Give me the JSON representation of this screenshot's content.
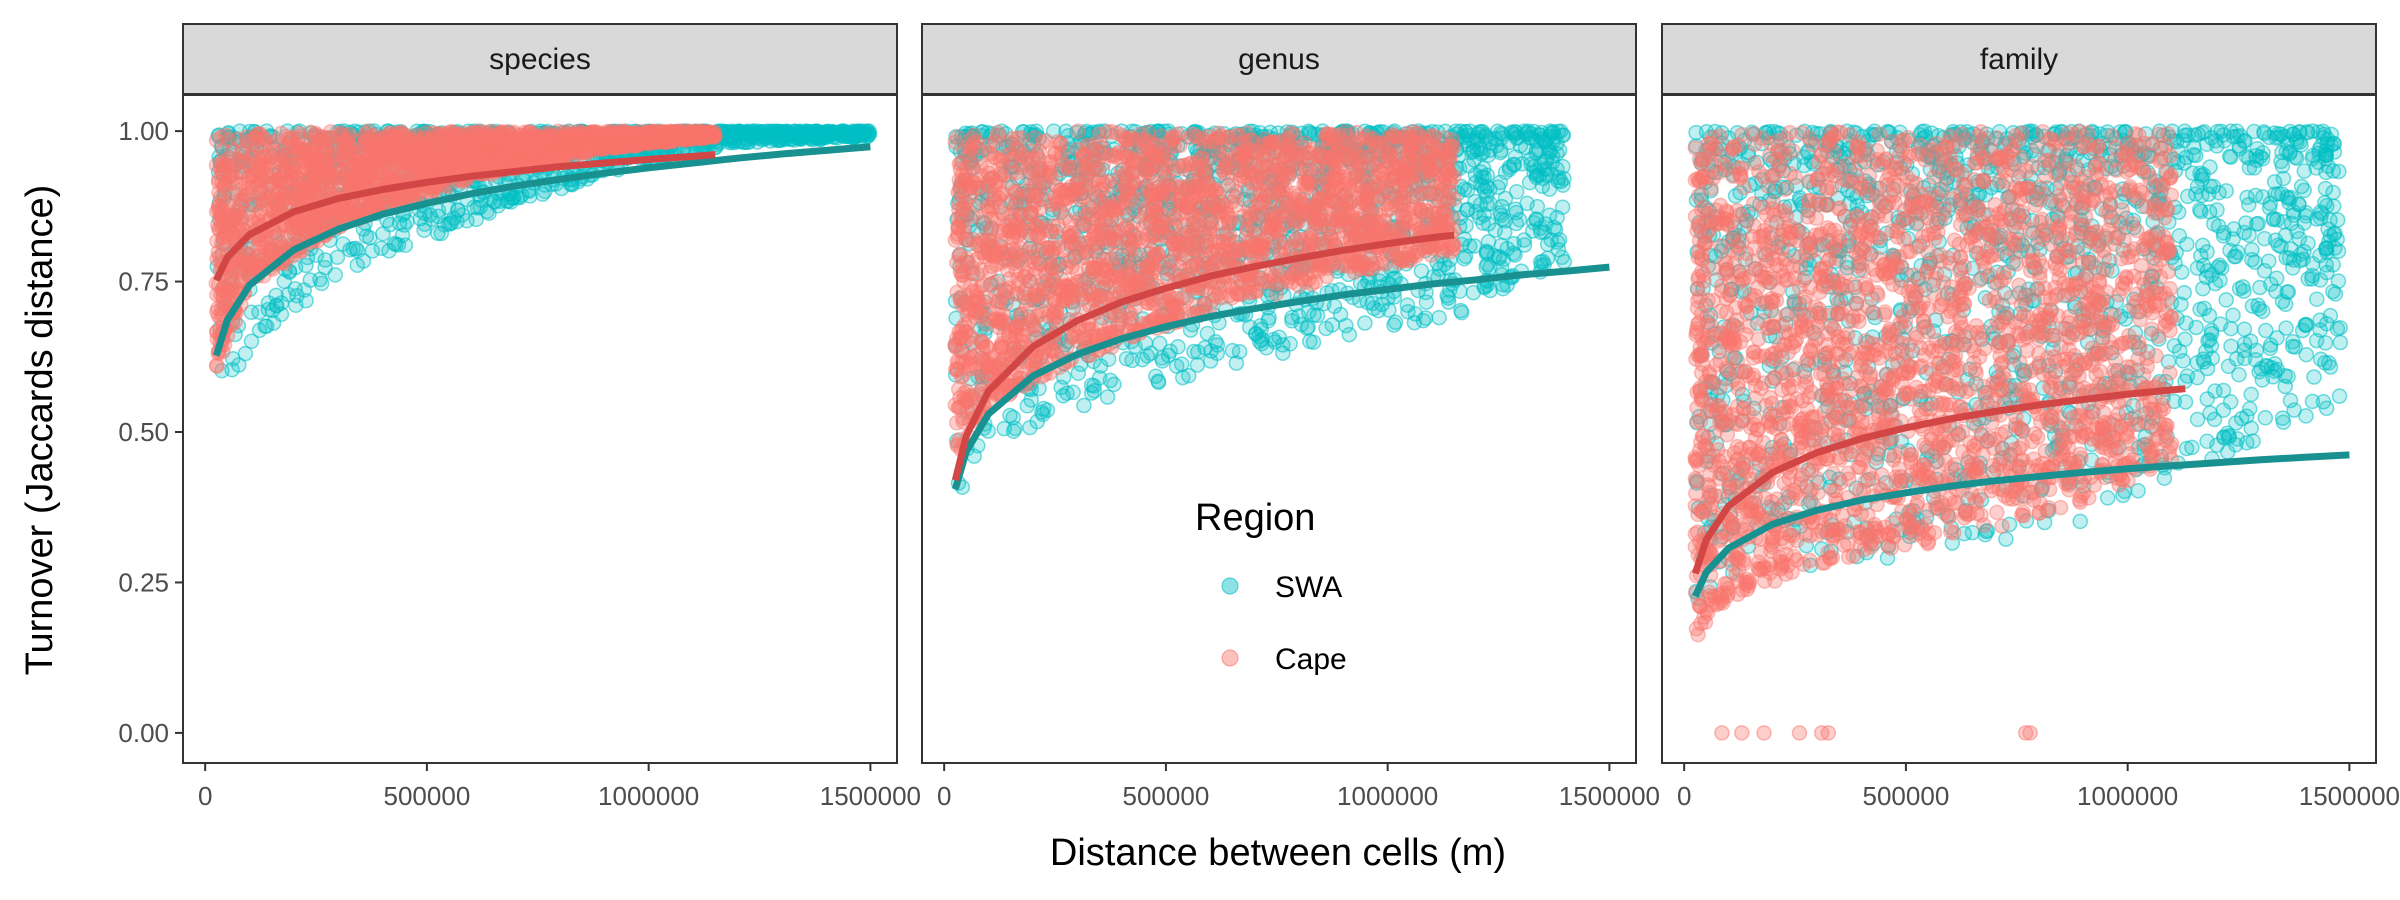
{
  "chart_data": {
    "type": "scatter",
    "facets": [
      "species",
      "genus",
      "family"
    ],
    "xlabel": "Distance between cells (m)",
    "ylabel": "Turnover (Jaccards distance)",
    "xlim": [
      -50000,
      1560000
    ],
    "ylim": [
      -0.05,
      1.06
    ],
    "x_ticks": [
      0,
      500000,
      1000000,
      1500000
    ],
    "x_tick_labels": [
      "0",
      "500000",
      "1000000",
      "1500000"
    ],
    "y_ticks": [
      0,
      0.25,
      0.5,
      0.75,
      1.0
    ],
    "y_tick_labels": [
      "0.00",
      "0.25",
      "0.50",
      "0.75",
      "1.00"
    ],
    "legend": {
      "title": "Region",
      "placement": "inside-center",
      "entries": [
        {
          "label": "SWA",
          "color": "#00BFC4"
        },
        {
          "label": "Cape",
          "color": "#F8766D"
        }
      ]
    },
    "colors": {
      "SWA_points": "#00BFC4",
      "Cape_points": "#F8766D",
      "SWA_curve": "#1A9191",
      "Cape_curve": "#D24646"
    },
    "panels": [
      {
        "facet": "species",
        "series": [
          {
            "name": "SWA",
            "x_range": [
              25000,
              1500000
            ],
            "y_min_curve": [
              [
                25000,
                0.55
              ],
              [
                100000,
                0.64
              ],
              [
                300000,
                0.76
              ],
              [
                600000,
                0.85
              ],
              [
                900000,
                0.93
              ],
              [
                1200000,
                0.98
              ],
              [
                1500000,
                0.99
              ]
            ],
            "y_max": 1.0,
            "n_points": 1200
          },
          {
            "name": "Cape",
            "x_range": [
              25000,
              1150000
            ],
            "y_min_curve": [
              [
                25000,
                0.6
              ],
              [
                100000,
                0.74
              ],
              [
                300000,
                0.84
              ],
              [
                600000,
                0.92
              ],
              [
                900000,
                0.97
              ],
              [
                1150000,
                0.99
              ]
            ],
            "y_max": 1.0,
            "n_points": 2000
          }
        ],
        "curves": [
          {
            "name": "SWA",
            "x": [
              25000,
              50000,
              100000,
              200000,
              300000,
              400000,
              500000,
              600000,
              700000,
              800000,
              900000,
              1000000,
              1100000,
              1200000,
              1300000,
              1400000,
              1500000
            ],
            "y": [
              0.627,
              0.686,
              0.744,
              0.803,
              0.837,
              0.862,
              0.88,
              0.896,
              0.909,
              0.92,
              0.93,
              0.939,
              0.947,
              0.955,
              0.962,
              0.968,
              0.974
            ]
          },
          {
            "name": "Cape",
            "x": [
              25000,
              50000,
              100000,
              200000,
              300000,
              400000,
              500000,
              600000,
              700000,
              800000,
              900000,
              1000000,
              1100000,
              1150000
            ],
            "y": [
              0.752,
              0.79,
              0.828,
              0.866,
              0.888,
              0.903,
              0.915,
              0.925,
              0.933,
              0.941,
              0.947,
              0.953,
              0.958,
              0.961
            ]
          }
        ]
      },
      {
        "facet": "genus",
        "series": [
          {
            "name": "SWA",
            "x_range": [
              25000,
              1400000
            ],
            "y_min_curve": [
              [
                25000,
                0.38
              ],
              [
                100000,
                0.47
              ],
              [
                300000,
                0.54
              ],
              [
                600000,
                0.6
              ],
              [
                900000,
                0.65
              ],
              [
                1200000,
                0.7
              ],
              [
                1400000,
                0.78
              ]
            ],
            "y_max": 1.0,
            "n_points": 1400
          },
          {
            "name": "Cape",
            "x_range": [
              25000,
              1150000
            ],
            "y_min_curve": [
              [
                25000,
                0.44
              ],
              [
                100000,
                0.54
              ],
              [
                300000,
                0.62
              ],
              [
                600000,
                0.7
              ],
              [
                900000,
                0.76
              ],
              [
                1150000,
                0.8
              ]
            ],
            "y_max": 1.0,
            "n_points": 2200
          }
        ],
        "curves": [
          {
            "name": "SWA",
            "x": [
              25000,
              50000,
              100000,
              200000,
              300000,
              400000,
              500000,
              600000,
              700000,
              800000,
              900000,
              1000000,
              1100000,
              1200000,
              1300000,
              1400000,
              1500000
            ],
            "y": [
              0.405,
              0.468,
              0.53,
              0.593,
              0.629,
              0.655,
              0.675,
              0.692,
              0.705,
              0.717,
              0.728,
              0.737,
              0.746,
              0.753,
              0.761,
              0.767,
              0.774
            ]
          },
          {
            "name": "Cape",
            "x": [
              25000,
              50000,
              100000,
              200000,
              300000,
              400000,
              500000,
              600000,
              700000,
              800000,
              900000,
              1000000,
              1100000,
              1150000
            ],
            "y": [
              0.42,
              0.494,
              0.568,
              0.642,
              0.685,
              0.716,
              0.739,
              0.759,
              0.775,
              0.789,
              0.802,
              0.813,
              0.823,
              0.827
            ]
          }
        ]
      },
      {
        "facet": "family",
        "series": [
          {
            "name": "SWA",
            "x_range": [
              25000,
              1480000
            ],
            "y_min_curve": [
              [
                25000,
                0.2
              ],
              [
                100000,
                0.25
              ],
              [
                300000,
                0.28
              ],
              [
                600000,
                0.3
              ],
              [
                900000,
                0.35
              ],
              [
                1200000,
                0.45
              ],
              [
                1480000,
                0.55
              ]
            ],
            "y_max": 1.0,
            "n_points": 1500
          },
          {
            "name": "Cape",
            "x_range": [
              25000,
              1100000
            ],
            "y_min_curve": [
              [
                25000,
                0.15
              ],
              [
                100000,
                0.22
              ],
              [
                300000,
                0.28
              ],
              [
                600000,
                0.32
              ],
              [
                900000,
                0.38
              ],
              [
                1100000,
                0.45
              ]
            ],
            "y_max": 1.0,
            "n_points": 2400
          }
        ],
        "outliers": [
          {
            "name": "Cape",
            "x": [
              85000,
              130000,
              180000,
              260000,
              310000,
              325000,
              770000,
              780000
            ],
            "y": [
              0,
              0,
              0,
              0,
              0,
              0,
              0,
              0
            ]
          }
        ],
        "curves": [
          {
            "name": "SWA",
            "x": [
              25000,
              50000,
              100000,
              200000,
              300000,
              400000,
              500000,
              600000,
              700000,
              800000,
              900000,
              1000000,
              1100000,
              1200000,
              1300000,
              1400000,
              1500000
            ],
            "y": [
              0.227,
              0.267,
              0.307,
              0.347,
              0.37,
              0.387,
              0.399,
              0.41,
              0.419,
              0.426,
              0.433,
              0.439,
              0.444,
              0.449,
              0.454,
              0.458,
              0.462
            ]
          },
          {
            "name": "Cape",
            "x": [
              25000,
              50000,
              100000,
              200000,
              300000,
              400000,
              500000,
              600000,
              700000,
              800000,
              900000,
              1000000,
              1100000,
              1130000
            ],
            "y": [
              0.265,
              0.321,
              0.377,
              0.433,
              0.466,
              0.489,
              0.507,
              0.522,
              0.534,
              0.545,
              0.554,
              0.563,
              0.57,
              0.572
            ]
          }
        ]
      }
    ]
  }
}
